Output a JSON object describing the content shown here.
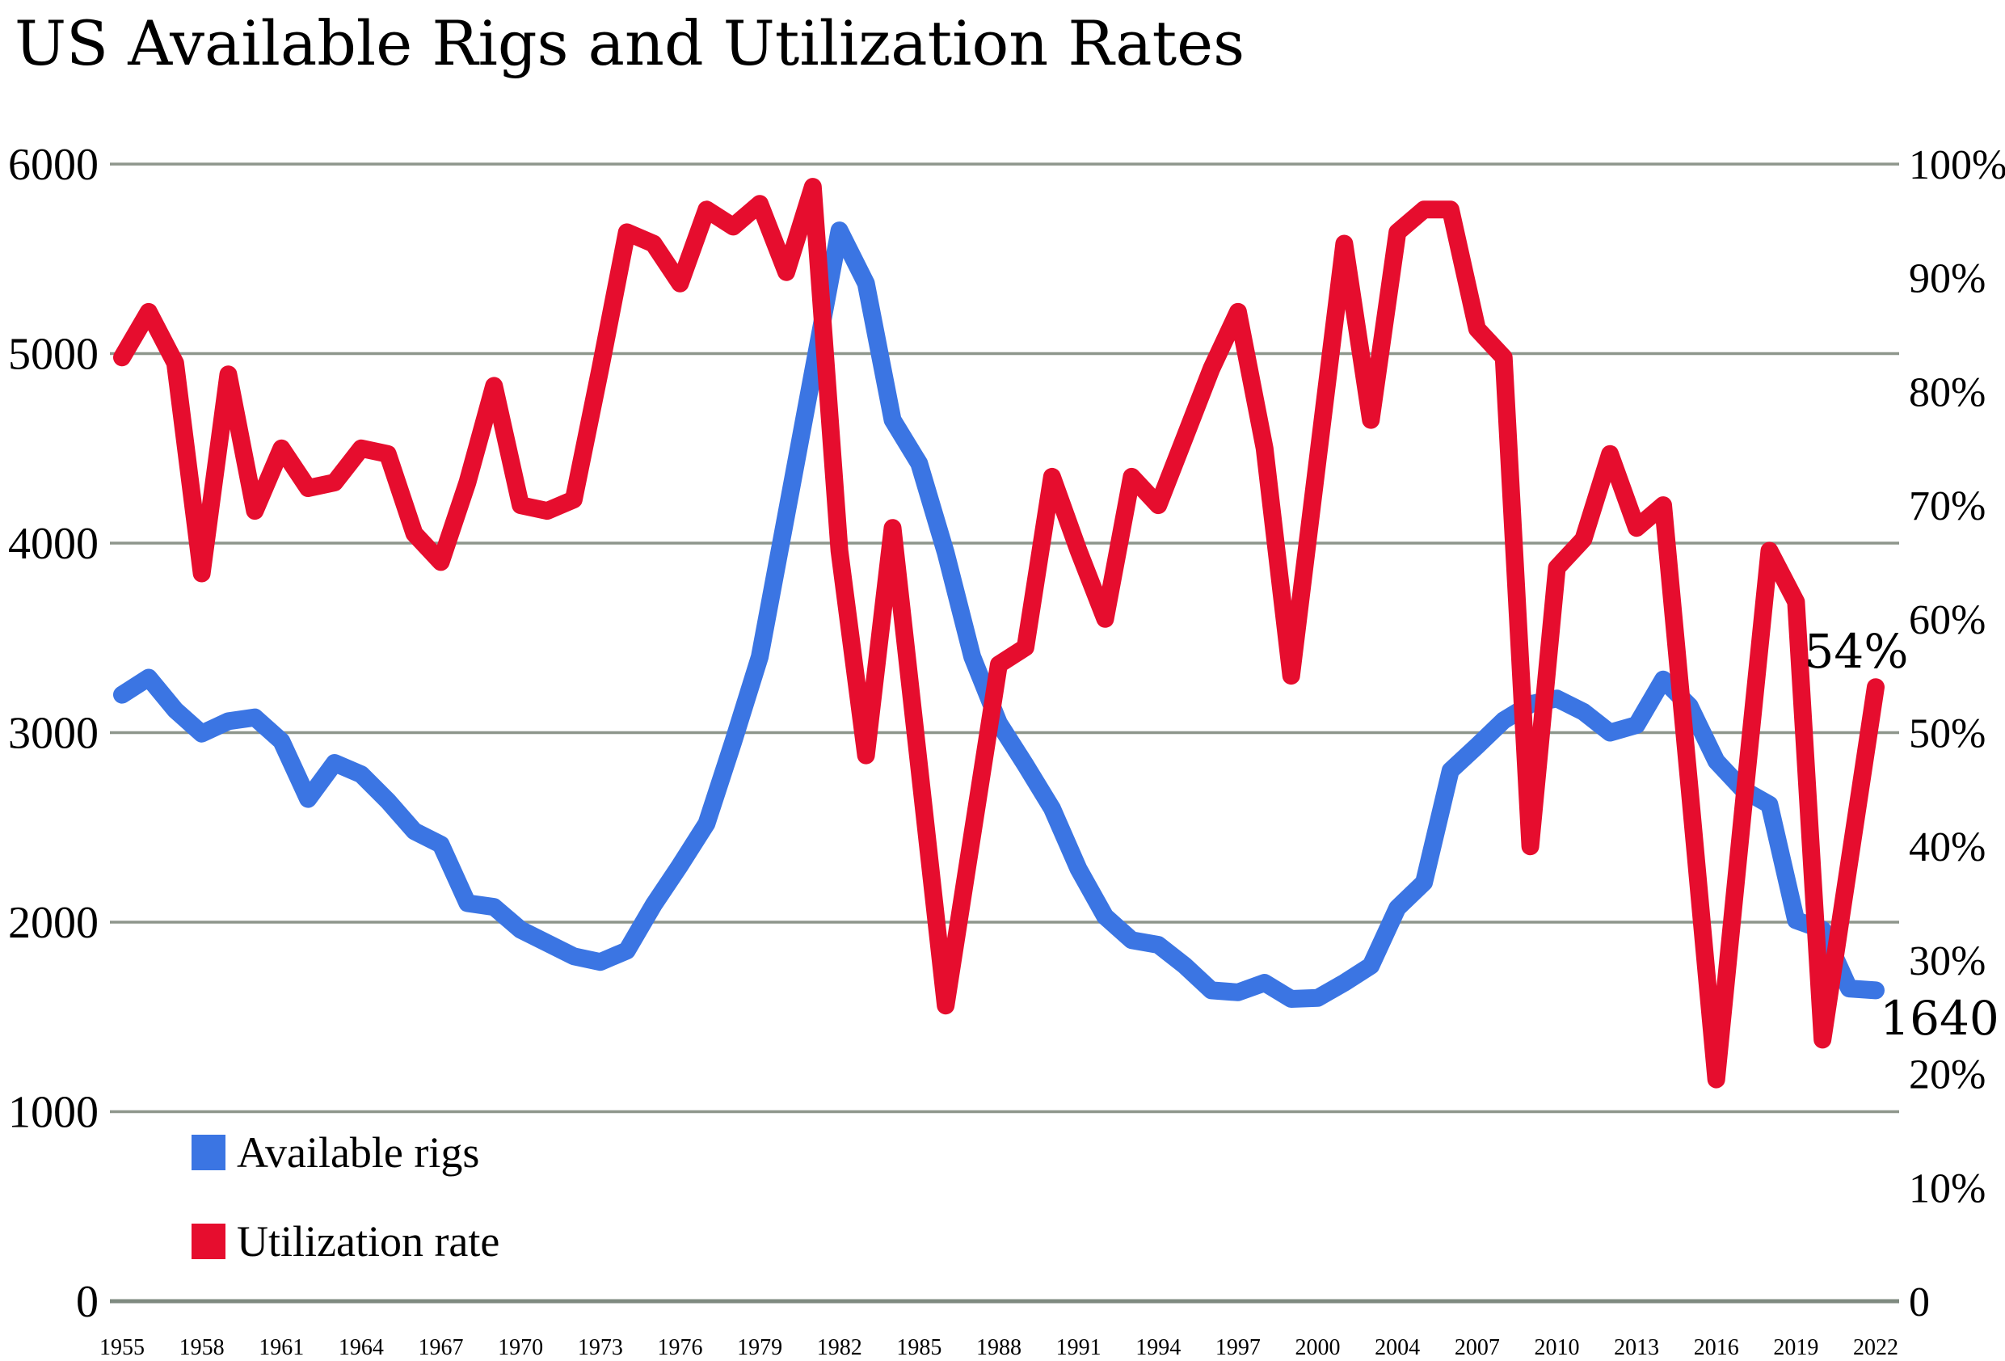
{
  "title": "US Available Rigs and Utilization Rates",
  "legend": [
    {
      "label": "Available rigs",
      "color": "#3b75e3"
    },
    {
      "label": "Utilization rate",
      "color": "#e60d2e"
    }
  ],
  "annotations": {
    "last_utilization": {
      "text": "54%",
      "color": "#e60d2e"
    },
    "last_rigs": {
      "text": "1640",
      "color": "#3b75e3"
    }
  },
  "colors": {
    "background": "#ffffff",
    "grid": "#8e968c",
    "zero_line": "#7f8a80",
    "text": "#000000",
    "rigs_line": "#3b75e3",
    "utilization_line": "#e60d2e"
  },
  "chart_data": {
    "type": "line",
    "title": "US Available Rigs and Utilization Rates",
    "x": [
      1955,
      1956,
      1957,
      1958,
      1959,
      1960,
      1961,
      1962,
      1963,
      1964,
      1965,
      1966,
      1967,
      1968,
      1969,
      1970,
      1971,
      1972,
      1973,
      1974,
      1975,
      1976,
      1977,
      1978,
      1979,
      1980,
      1981,
      1982,
      1983,
      1984,
      1985,
      1986,
      1987,
      1988,
      1989,
      1990,
      1991,
      1992,
      1993,
      1994,
      1995,
      1996,
      1997,
      1998,
      1999,
      2000,
      2001,
      2002,
      2004,
      2005,
      2006,
      2007,
      2008,
      2009,
      2010,
      2011,
      2012,
      2013,
      2014,
      2015,
      2016,
      2017,
      2018,
      2019,
      2020,
      2021,
      2022
    ],
    "x_tick_step": 3,
    "x_tick_labels": [
      "1955",
      "1958",
      "1961",
      "1964",
      "1967",
      "1970",
      "1973",
      "1976",
      "1979",
      "1982",
      "1985",
      "1988",
      "1991",
      "1994",
      "1997",
      "2000",
      "2004",
      "2007",
      "2010",
      "2013",
      "2016",
      "2019",
      "2022"
    ],
    "grid": true,
    "left_axis": {
      "min": 0,
      "max": 6000,
      "tick_interval": 1000,
      "ticks": [
        "6000",
        "5000",
        "4000",
        "3000",
        "2000",
        "1000",
        "0"
      ]
    },
    "right_axis": {
      "min": 0,
      "max": 100,
      "tick_interval": 10,
      "suffix": "%",
      "ticks": [
        "100%",
        "90%",
        "80%",
        "70%",
        "60%",
        "50%",
        "40%",
        "30%",
        "20%",
        "10%",
        "0"
      ]
    },
    "series": [
      {
        "name": "Available rigs",
        "axis": "left",
        "color": "#3b75e3",
        "values": [
          3200,
          3290,
          3120,
          2995,
          3060,
          3080,
          2955,
          2650,
          2840,
          2780,
          2640,
          2480,
          2410,
          2100,
          2080,
          1960,
          1890,
          1820,
          1790,
          1850,
          2090,
          2300,
          2520,
          2950,
          3400,
          4150,
          4900,
          5650,
          5370,
          4650,
          4420,
          3950,
          3400,
          3050,
          2830,
          2600,
          2280,
          2030,
          1905,
          1880,
          1770,
          1640,
          1630,
          1680,
          1595,
          1600,
          1680,
          1770,
          2075,
          2210,
          2800,
          2930,
          3065,
          3150,
          3180,
          3110,
          3000,
          3040,
          3280,
          3140,
          2850,
          2700,
          2620,
          2010,
          1960,
          1650,
          1640
        ]
      },
      {
        "name": "Utilization rate",
        "axis": "right",
        "color": "#e60d2e",
        "values": [
          83,
          87,
          82.5,
          64,
          81.5,
          69.5,
          75,
          71.5,
          72,
          75,
          74.5,
          67.5,
          65,
          72,
          80.5,
          70,
          69.5,
          70.5,
          82,
          94,
          93,
          89.5,
          96,
          94.5,
          96.5,
          90.5,
          98,
          66,
          48,
          68,
          47,
          26,
          41,
          56,
          57.5,
          72.5,
          66,
          60,
          72.5,
          70,
          76,
          82,
          87,
          75,
          55,
          74,
          93,
          77.5,
          94,
          96,
          96,
          85.5,
          83,
          40,
          64.5,
          67,
          74.5,
          68,
          70,
          45,
          19.5,
          43,
          66,
          61.5,
          23,
          38.5,
          54
        ]
      }
    ],
    "annotations": [
      {
        "text": "54%",
        "series": "Utilization rate",
        "attached_to_year": 2022,
        "value": 54
      },
      {
        "text": "1640",
        "series": "Available rigs",
        "attached_to_year": 2022,
        "value": 1640
      }
    ]
  }
}
